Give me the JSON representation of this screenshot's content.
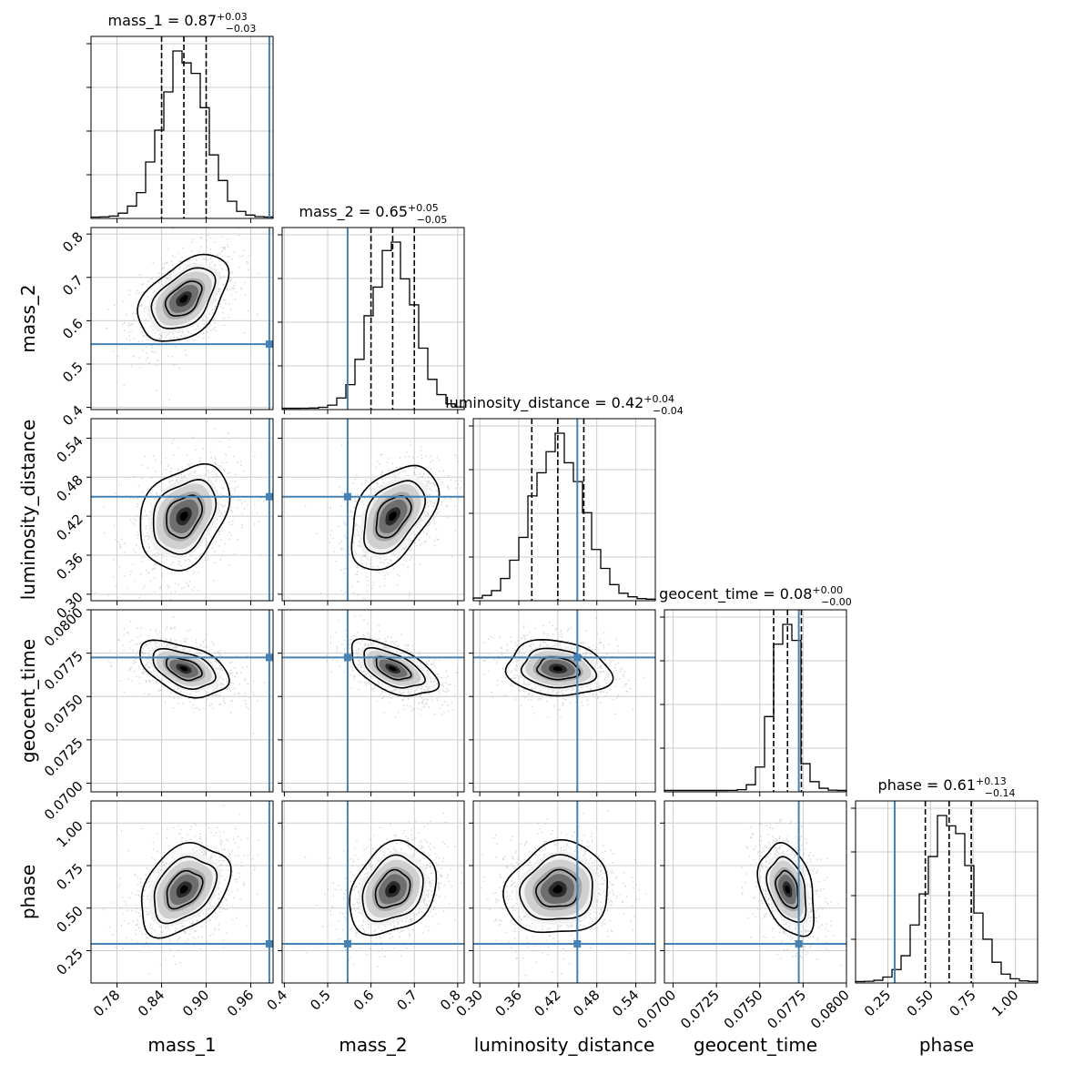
{
  "chart_data": {
    "type": "corner",
    "parameters": [
      {
        "name": "mass_1",
        "label": "mass_1",
        "median": 0.87,
        "plus": 0.03,
        "minus": 0.03,
        "median_text": "0.87",
        "plus_text": "+0.03",
        "minus_text": "−0.03",
        "range": [
          0.745,
          0.99
        ],
        "ticks": [
          0.78,
          0.84,
          0.9,
          0.96
        ],
        "tick_labels": [
          "0.78",
          "0.84",
          "0.90",
          "0.96"
        ],
        "truth": 0.985,
        "sd": 0.03
      },
      {
        "name": "mass_2",
        "label": "mass_2",
        "median": 0.65,
        "plus": 0.05,
        "minus": 0.05,
        "median_text": "0.65",
        "plus_text": "+0.05",
        "minus_text": "−0.05",
        "range": [
          0.395,
          0.815
        ],
        "ticks": [
          0.4,
          0.5,
          0.6,
          0.7,
          0.8
        ],
        "tick_labels": [
          "0.4",
          "0.5",
          "0.6",
          "0.7",
          "0.8"
        ],
        "truth": 0.546,
        "sd": 0.05
      },
      {
        "name": "luminosity_distance",
        "label": "luminosity_distance",
        "median": 0.42,
        "plus": 0.04,
        "minus": 0.04,
        "median_text": "0.42",
        "plus_text": "+0.04",
        "minus_text": "−0.04",
        "range": [
          0.29,
          0.57
        ],
        "ticks": [
          0.3,
          0.36,
          0.42,
          0.48,
          0.54
        ],
        "tick_labels": [
          "0.30",
          "0.36",
          "0.42",
          "0.48",
          "0.54"
        ],
        "truth": 0.45,
        "sd": 0.04
      },
      {
        "name": "geocent_time",
        "label": "geocent_time",
        "median": 0.08,
        "plus": 0.0,
        "minus": 0.0,
        "median_text": "0.08",
        "plus_text": "+0.00",
        "minus_text": "−0.00",
        "center": 0.0766,
        "range": [
          0.0695,
          0.08
        ],
        "ticks": [
          0.07,
          0.0725,
          0.075,
          0.0775,
          0.08
        ],
        "tick_labels": [
          "0.0700",
          "0.0725",
          "0.0750",
          "0.0775",
          "0.0800"
        ],
        "truth": 0.07725,
        "sd": 0.0008
      },
      {
        "name": "phase",
        "label": "phase",
        "median": 0.61,
        "plus": 0.13,
        "minus": 0.14,
        "median_text": "0.61",
        "plus_text": "+0.13",
        "minus_text": "−0.14",
        "range": [
          0.06,
          1.13
        ],
        "ticks": [
          0.25,
          0.5,
          0.75,
          1.0
        ],
        "tick_labels": [
          "0.25",
          "0.50",
          "0.75",
          "1.00"
        ],
        "truth": 0.29,
        "sd": 0.135
      }
    ],
    "correlations": {
      "1-0": 0.45,
      "2-0": 0.3,
      "2-1": 0.45,
      "3-0": -0.45,
      "3-1": -0.55,
      "3-2": -0.15,
      "4-0": 0.35,
      "4-1": 0.25,
      "4-2": 0.1,
      "4-3": -0.35
    },
    "colors": {
      "truth": "#4682b4",
      "contour": "#000000",
      "samples": "#bbbbbb",
      "grid": "#cccccc"
    },
    "grid": true
  }
}
